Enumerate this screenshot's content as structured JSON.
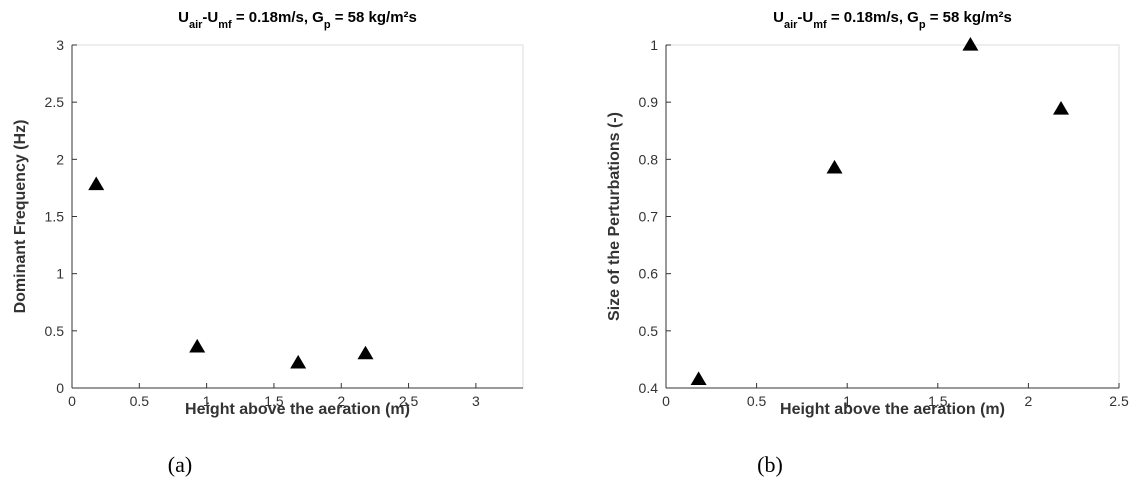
{
  "chart_data": [
    {
      "type": "scatter",
      "marker": "triangle",
      "color": "#000000",
      "title": [
        {
          "text": "U"
        },
        {
          "text": "air",
          "sub": true
        },
        {
          "text": "-U"
        },
        {
          "text": "mf",
          "sub": true
        },
        {
          "text": " = 0.18m/s, G"
        },
        {
          "text": "p",
          "sub": true
        },
        {
          "text": " = 58 kg/m²s"
        }
      ],
      "x_label": "Height above the aeration (m)",
      "y_label": "Dominant Frequency (Hz)",
      "caption": "(a)",
      "x": [
        0.18,
        0.93,
        1.68,
        2.18
      ],
      "values": [
        1.78,
        0.36,
        0.22,
        0.3
      ],
      "xlim": [
        0,
        3.35
      ],
      "xticks": [
        0,
        0.5,
        1,
        1.5,
        2,
        2.5,
        3
      ],
      "ylim": [
        0,
        3
      ],
      "yticks": [
        0,
        0.5,
        1,
        1.5,
        2,
        2.5,
        3
      ]
    },
    {
      "type": "scatter",
      "marker": "triangle",
      "color": "#000000",
      "title": [
        {
          "text": "U"
        },
        {
          "text": "air",
          "sub": true
        },
        {
          "text": "-U"
        },
        {
          "text": "mf",
          "sub": true
        },
        {
          "text": " = 0.18m/s, G"
        },
        {
          "text": "p",
          "sub": true
        },
        {
          "text": " = 58 kg/m²s"
        }
      ],
      "x_label": "Height above the aeration (m)",
      "y_label": "Size of the Perturbations (-)",
      "caption": "(b)",
      "x": [
        0.18,
        0.93,
        1.68,
        2.18
      ],
      "values": [
        0.415,
        0.785,
        1.0,
        0.888
      ],
      "xlim": [
        0,
        2.5
      ],
      "xticks": [
        0,
        0.5,
        1,
        1.5,
        2,
        2.5
      ],
      "ylim": [
        0.4,
        1
      ],
      "yticks": [
        0.4,
        0.5,
        0.6,
        0.7,
        0.8,
        0.9,
        1
      ]
    }
  ]
}
